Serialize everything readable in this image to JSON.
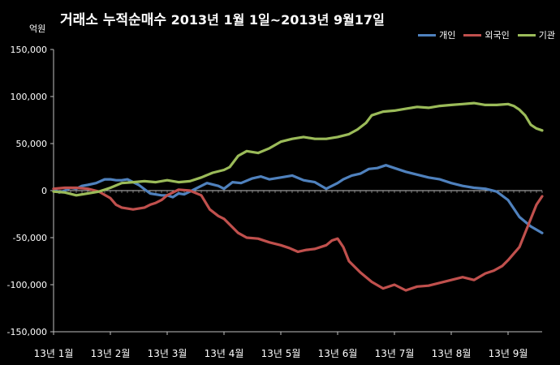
{
  "chart_data": {
    "type": "line",
    "title": "거래소  누적순매수",
    "subtitle": "2013년 1월 1일~2013년 9월17일",
    "ylabel": "억원",
    "ylim": [
      -150000,
      150000
    ],
    "yticks": [
      150000,
      100000,
      50000,
      0,
      -50000,
      -100000,
      -150000
    ],
    "ytick_labels": [
      "150,000",
      "100,000",
      "50,000",
      "0",
      "-50,000",
      "-100,000",
      "-150,000"
    ],
    "xticks": [
      "13년 1월",
      "13년 2월",
      "13년 3월",
      "13년 4월",
      "13년 5월",
      "13년 6월",
      "13년 7월",
      "13년 8월",
      "13년 9월"
    ],
    "xlim": [
      0,
      8.6
    ],
    "grid": false,
    "legend": "top-right",
    "series": [
      {
        "name": "개인",
        "color": "#4f81bd",
        "x": [
          0,
          0.1,
          0.2,
          0.3,
          0.4,
          0.5,
          0.6,
          0.75,
          0.9,
          1.0,
          1.1,
          1.2,
          1.3,
          1.4,
          1.5,
          1.7,
          1.9,
          2.0,
          2.1,
          2.2,
          2.3,
          2.5,
          2.7,
          2.9,
          3.0,
          3.15,
          3.3,
          3.5,
          3.65,
          3.8,
          4.0,
          4.2,
          4.4,
          4.6,
          4.8,
          5.0,
          5.1,
          5.25,
          5.4,
          5.55,
          5.7,
          5.85,
          6.0,
          6.2,
          6.4,
          6.6,
          6.8,
          7.0,
          7.2,
          7.4,
          7.6,
          7.8,
          8.0,
          8.2,
          8.4,
          8.6
        ],
        "values": [
          2000,
          -2000,
          0,
          3000,
          2000,
          5000,
          6000,
          8000,
          12000,
          12000,
          11000,
          11000,
          12000,
          9000,
          6000,
          -3000,
          -5000,
          -5000,
          -7000,
          -3000,
          -4000,
          2000,
          8000,
          5000,
          2000,
          9000,
          8000,
          13000,
          15000,
          12000,
          14000,
          16000,
          11000,
          9000,
          2000,
          8000,
          12000,
          16000,
          18000,
          23000,
          24000,
          27000,
          24000,
          20000,
          17000,
          14000,
          12000,
          8000,
          5000,
          3000,
          2000,
          -1000,
          -10000,
          -28000,
          -38000,
          -45000
        ]
      },
      {
        "name": "외국인",
        "color": "#c0504d",
        "x": [
          0,
          0.2,
          0.4,
          0.6,
          0.8,
          1.0,
          1.1,
          1.2,
          1.4,
          1.6,
          1.7,
          1.8,
          1.9,
          2.0,
          2.2,
          2.4,
          2.6,
          2.75,
          2.9,
          3.0,
          3.1,
          3.25,
          3.4,
          3.6,
          3.8,
          4.0,
          4.15,
          4.3,
          4.45,
          4.6,
          4.8,
          4.9,
          5.0,
          5.1,
          5.2,
          5.4,
          5.6,
          5.8,
          6.0,
          6.2,
          6.4,
          6.6,
          6.8,
          7.0,
          7.2,
          7.4,
          7.6,
          7.75,
          7.9,
          8.0,
          8.1,
          8.2,
          8.3,
          8.4,
          8.5,
          8.6
        ],
        "values": [
          2000,
          3000,
          3000,
          2000,
          -1000,
          -8000,
          -15000,
          -18000,
          -20000,
          -18000,
          -15000,
          -13000,
          -10000,
          -5000,
          1000,
          0,
          -5000,
          -20000,
          -27000,
          -30000,
          -36000,
          -45000,
          -50000,
          -51000,
          -55000,
          -58000,
          -61000,
          -65000,
          -63000,
          -62000,
          -58000,
          -53000,
          -51000,
          -60000,
          -75000,
          -87000,
          -97000,
          -104000,
          -100000,
          -106000,
          -102000,
          -101000,
          -98000,
          -95000,
          -92000,
          -95000,
          -88000,
          -85000,
          -80000,
          -74000,
          -67000,
          -60000,
          -45000,
          -30000,
          -15000,
          -6000
        ]
      },
      {
        "name": "기관",
        "color": "#9bbb59",
        "x": [
          0,
          0.2,
          0.4,
          0.6,
          0.8,
          1.0,
          1.2,
          1.4,
          1.6,
          1.8,
          2.0,
          2.2,
          2.4,
          2.6,
          2.8,
          3.0,
          3.1,
          3.25,
          3.4,
          3.6,
          3.8,
          4.0,
          4.2,
          4.4,
          4.6,
          4.8,
          5.0,
          5.2,
          5.35,
          5.5,
          5.6,
          5.8,
          6.0,
          6.2,
          6.4,
          6.6,
          6.8,
          7.0,
          7.2,
          7.4,
          7.6,
          7.8,
          8.0,
          8.1,
          8.2,
          8.3,
          8.4,
          8.5,
          8.6
        ],
        "values": [
          -1000,
          -2000,
          -5000,
          -3000,
          -1000,
          3000,
          8000,
          9000,
          10000,
          9000,
          11000,
          9000,
          10000,
          14000,
          19000,
          22000,
          25000,
          37000,
          42000,
          40000,
          45000,
          52000,
          55000,
          57000,
          55000,
          55000,
          57000,
          60000,
          65000,
          72000,
          80000,
          84000,
          85000,
          87000,
          89000,
          88000,
          90000,
          91000,
          92000,
          93000,
          91000,
          91000,
          92000,
          90000,
          86000,
          80000,
          70000,
          66000,
          64000
        ]
      }
    ]
  }
}
